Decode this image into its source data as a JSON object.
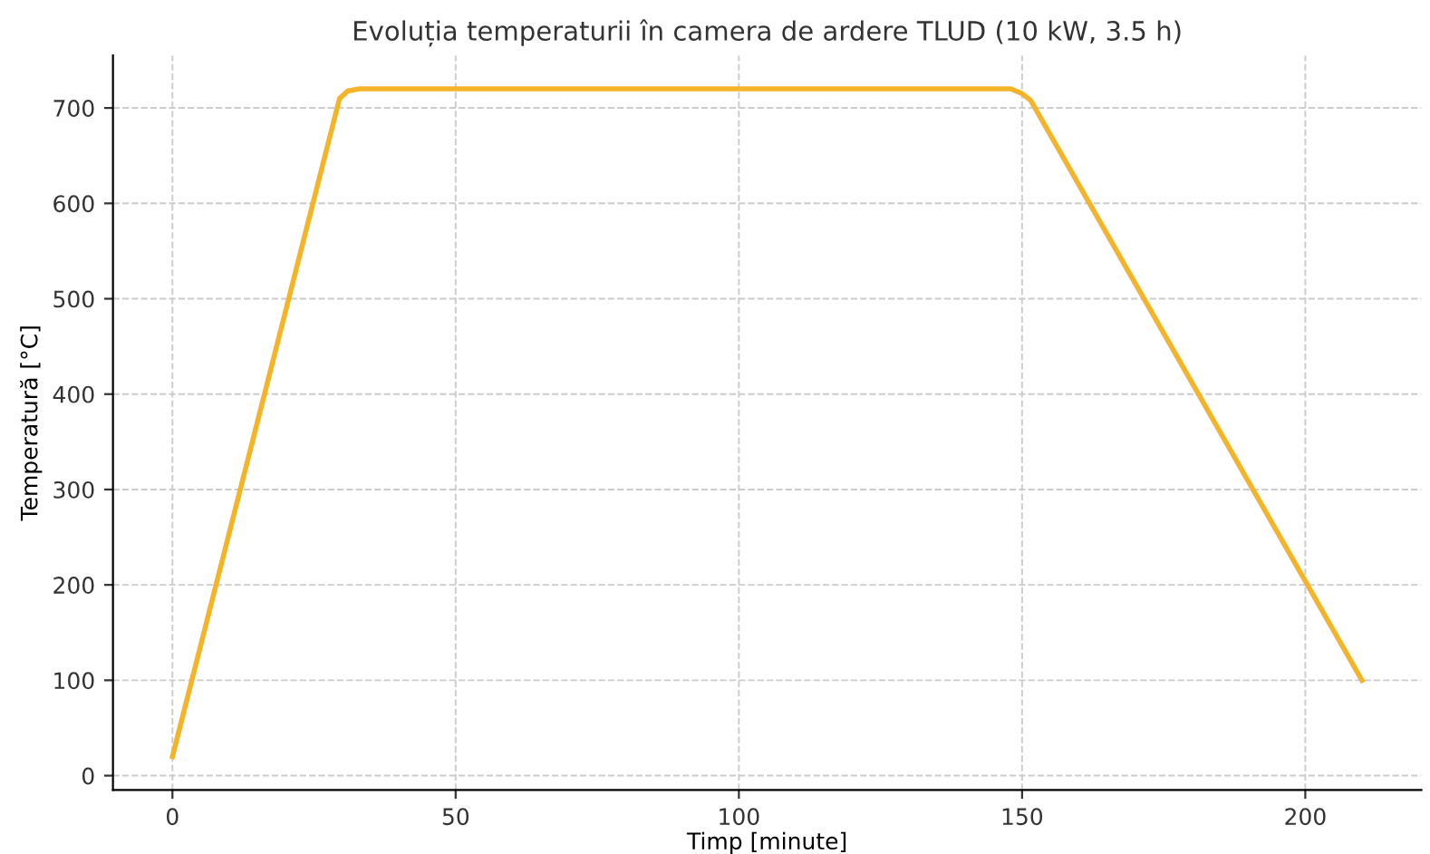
{
  "chart_data": {
    "type": "line",
    "title": "Evoluția temperaturii în camera de ardere TLUD (10 kW, 3.5 h)",
    "xlabel": "Timp [minute]",
    "ylabel": "Temperatură [°C]",
    "x": [
      0,
      29.5,
      31,
      33,
      148,
      150,
      151.5,
      210
    ],
    "series": [
      {
        "color": "#f5b427",
        "values": [
          20,
          710,
          718,
          720,
          720,
          715,
          708,
          100
        ]
      }
    ],
    "xlim": [
      -10.5,
      220.5
    ],
    "xticks": [
      0,
      50,
      100,
      150,
      200
    ],
    "ylim": [
      -15,
      755
    ],
    "yticks": [
      0,
      100,
      200,
      300,
      400,
      500,
      600,
      700
    ],
    "grid": true,
    "line_style": "solid"
  }
}
